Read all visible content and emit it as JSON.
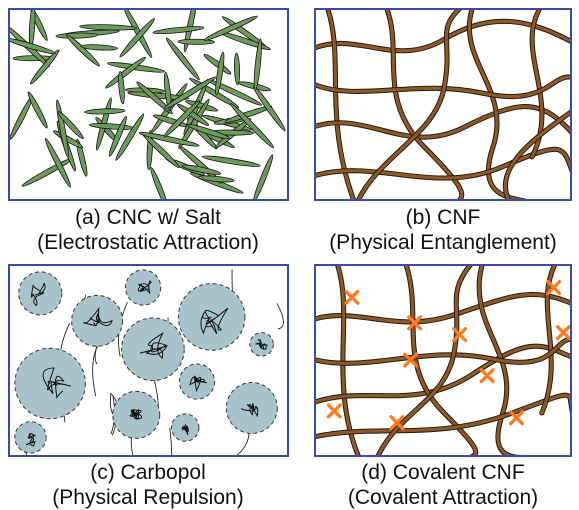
{
  "panels": [
    {
      "id": "a",
      "caption_line1": "(a) CNC w/ Salt",
      "caption_line2": "(Electrostatic Attraction)"
    },
    {
      "id": "b",
      "caption_line1": "(b) CNF",
      "caption_line2": "(Physical Entanglement)"
    },
    {
      "id": "c",
      "caption_line1": "(c) Carbopol",
      "caption_line2": "(Physical Repulsion)"
    },
    {
      "id": "d",
      "caption_line1": "(d) Covalent CNF",
      "caption_line2": "(Covalent Attraction)"
    }
  ],
  "colors": {
    "frame": "#3a4aa8",
    "cnc_fill": "#6f9a5e",
    "fiber": "#8a5a2b",
    "fiber_outline": "#2a1a0c",
    "particle_fill": "#a9c3cd",
    "crosslink": "#ff7a20"
  },
  "icons": {
    "cnc_particle": "needle-shape",
    "fiber": "curved-strand",
    "carbopol_particle": "swollen-sphere",
    "crosslink": "x-mark"
  }
}
